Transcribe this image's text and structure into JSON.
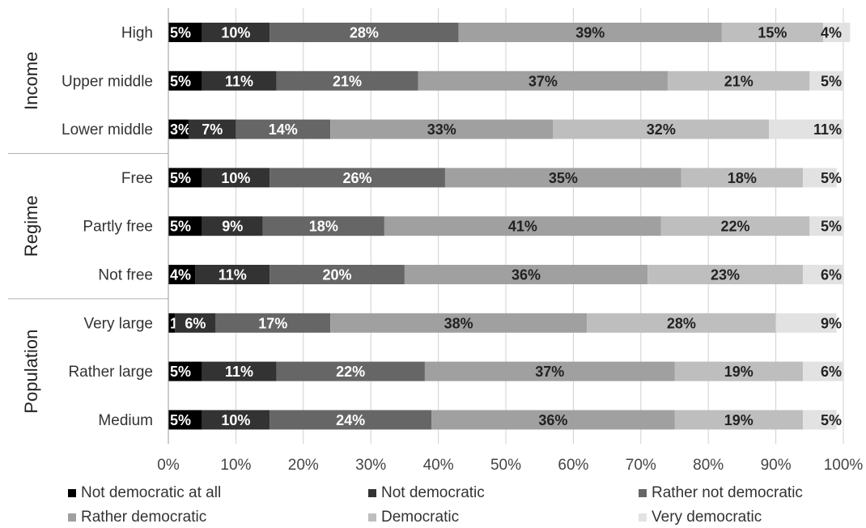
{
  "chart_data": {
    "type": "bar",
    "orientation": "horizontal",
    "stacked": true,
    "title": "",
    "xlabel": "",
    "ylabel": "",
    "xlim": [
      0,
      100
    ],
    "x_tick_labels": [
      "0%",
      "10%",
      "20%",
      "30%",
      "40%",
      "50%",
      "60%",
      "70%",
      "80%",
      "90%",
      "100%"
    ],
    "grid": "vertical",
    "legend_position": "bottom",
    "groups": [
      {
        "name": "Income",
        "categories": [
          "High",
          "Upper middle",
          "Lower middle"
        ]
      },
      {
        "name": "Regime",
        "categories": [
          "Free",
          "Partly free",
          "Not free"
        ]
      },
      {
        "name": "Population",
        "categories": [
          "Very large",
          "Rather large",
          "Medium"
        ]
      }
    ],
    "categories": [
      "High",
      "Upper middle",
      "Lower middle",
      "Free",
      "Partly free",
      "Not free",
      "Very large",
      "Rather large",
      "Medium"
    ],
    "series": [
      {
        "name": "Not democratic at all",
        "color": "#000000",
        "label_color": "#ffffff",
        "values": [
          5,
          5,
          3,
          5,
          5,
          4,
          1,
          5,
          5
        ]
      },
      {
        "name": "Not democratic",
        "color": "#333333",
        "label_color": "#ffffff",
        "values": [
          10,
          11,
          7,
          10,
          9,
          11,
          6,
          11,
          10
        ]
      },
      {
        "name": "Rather not democratic",
        "color": "#666666",
        "label_color": "#ffffff",
        "values": [
          28,
          21,
          14,
          26,
          18,
          20,
          17,
          22,
          24
        ]
      },
      {
        "name": "Rather democratic",
        "color": "#a0a0a0",
        "label_color": "#222222",
        "values": [
          39,
          37,
          33,
          35,
          41,
          36,
          38,
          37,
          36
        ]
      },
      {
        "name": "Democratic",
        "color": "#bebebe",
        "label_color": "#222222",
        "values": [
          15,
          21,
          32,
          18,
          22,
          23,
          28,
          19,
          19
        ]
      },
      {
        "name": "Very democratic",
        "color": "#e2e2e2",
        "label_color": "#222222",
        "values": [
          4,
          5,
          11,
          5,
          5,
          6,
          9,
          6,
          5
        ]
      }
    ]
  }
}
